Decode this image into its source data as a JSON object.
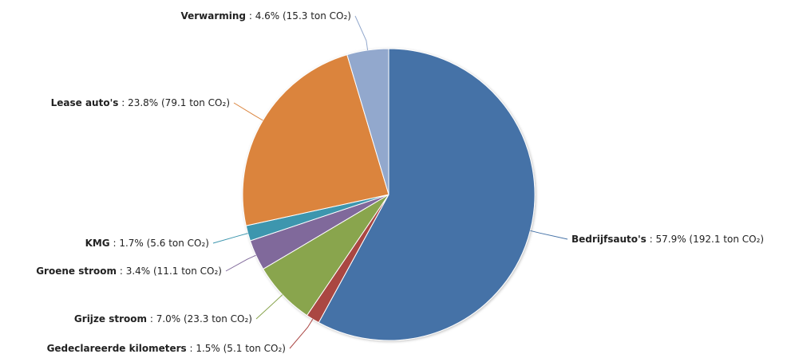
{
  "chart_data": {
    "type": "pie",
    "unit_label": "ton CO₂",
    "slices": [
      {
        "name": "Bedrijfsauto's",
        "percent": 57.9,
        "value": 192.1,
        "color": "#4572A7",
        "label_side": "right"
      },
      {
        "name": "Gedeclareerde kilometers",
        "percent": 1.5,
        "value": 5.1,
        "color": "#AA4643",
        "label_side": "left"
      },
      {
        "name": "Grijze stroom",
        "percent": 7.0,
        "value": 23.3,
        "color": "#89A54E",
        "label_side": "left"
      },
      {
        "name": "Groene stroom",
        "percent": 3.4,
        "value": 11.1,
        "color": "#80699B",
        "label_side": "left"
      },
      {
        "name": "KMG",
        "percent": 1.7,
        "value": 5.6,
        "color": "#3D96AE",
        "label_side": "left"
      },
      {
        "name": "Lease auto's",
        "percent": 23.8,
        "value": 79.1,
        "color": "#DB843D",
        "label_side": "left"
      },
      {
        "name": "Verwarming",
        "percent": 4.6,
        "value": 15.3,
        "color": "#92A8CD",
        "label_side": "left"
      }
    ]
  }
}
